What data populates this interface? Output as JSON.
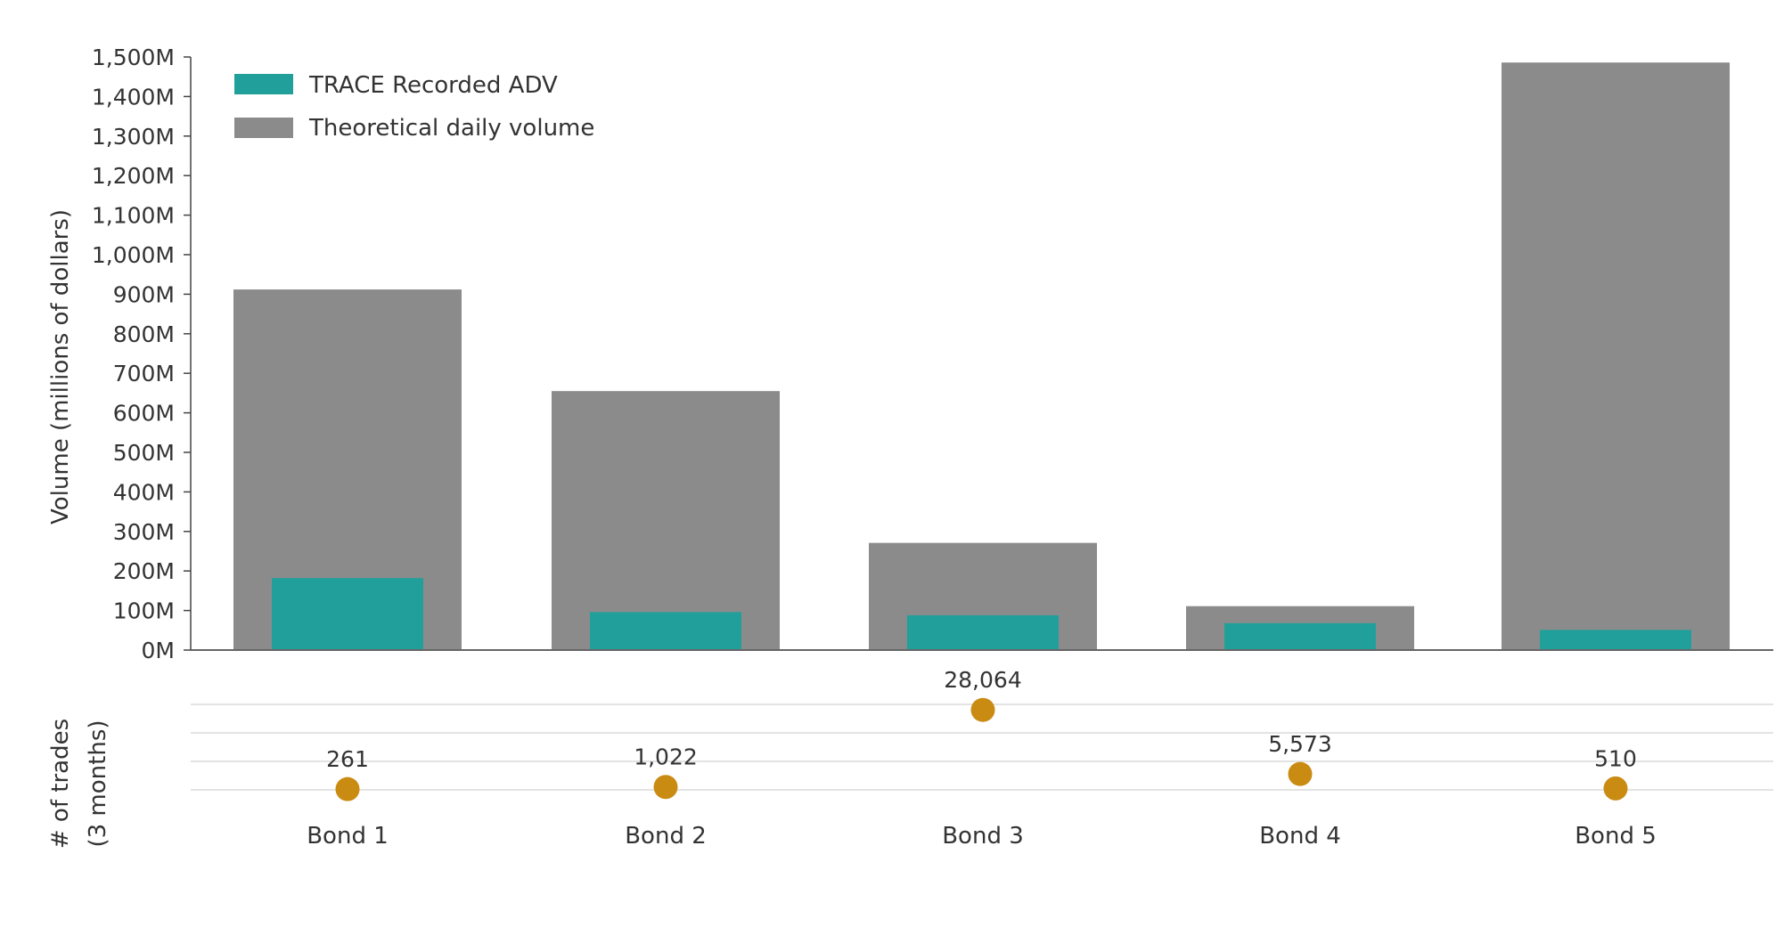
{
  "chart_data": [
    {
      "type": "bar",
      "ylabel": "Volume (millions of dollars)",
      "xlabel": "",
      "ylim": [
        0,
        1500
      ],
      "yticks": [
        "0M",
        "100M",
        "200M",
        "300M",
        "400M",
        "500M",
        "600M",
        "700M",
        "800M",
        "900M",
        "1,000M",
        "1,100M",
        "1,200M",
        "1,300M",
        "1,400M",
        "1,500M"
      ],
      "categories": [
        "Bond 1",
        "Bond 2",
        "Bond 3",
        "Bond 4",
        "Bond 5"
      ],
      "legend_position": "top-left",
      "grid": false,
      "series": [
        {
          "name": "TRACE Recorded ADV",
          "color": "#21a09b",
          "values": [
            182,
            96,
            88,
            68,
            51
          ]
        },
        {
          "name": "Theoretical daily volume",
          "color": "#8c8b8c",
          "values": [
            912,
            655,
            271,
            111,
            1486
          ]
        }
      ]
    },
    {
      "type": "scatter",
      "ylabel": "# of trades (3 months)",
      "ylabel_lines": [
        "# of trades",
        "(3 months)"
      ],
      "ylim": [
        0,
        30000
      ],
      "grid": true,
      "categories": [
        "Bond 1",
        "Bond 2",
        "Bond 3",
        "Bond 4",
        "Bond 5"
      ],
      "values": [
        261,
        1022,
        28064,
        5573,
        510
      ],
      "data_labels": [
        "261",
        "1,022",
        "28,064",
        "5,573",
        "510"
      ],
      "color": "#c98b12"
    }
  ]
}
